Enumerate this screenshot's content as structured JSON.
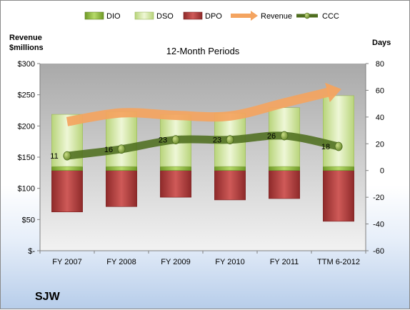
{
  "chart_data": {
    "type": "bar",
    "title": "12-Month Periods",
    "company": "SJW",
    "categories": [
      "FY 2007",
      "FY 2008",
      "FY 2009",
      "FY 2010",
      "FY 2011",
      "TTM 6-2012"
    ],
    "left_axis": {
      "label_line1": "Revenue",
      "label_line2": "$millions",
      "ylim": [
        0,
        300
      ],
      "ticks": [
        0,
        50,
        100,
        150,
        200,
        250,
        300
      ],
      "tick_labels": [
        "$-",
        "$50",
        "$100",
        "$150",
        "$200",
        "$250",
        "$300"
      ]
    },
    "right_axis": {
      "label": "Days",
      "ylim": [
        -60,
        80
      ],
      "ticks": [
        -60,
        -40,
        -20,
        0,
        20,
        40,
        60,
        80
      ],
      "tick_labels": [
        "-60",
        "-40",
        "-20",
        "0",
        "20",
        "40",
        "60",
        "80"
      ]
    },
    "series": [
      {
        "name": "DIO",
        "axis": "right",
        "kind": "stacked-bar",
        "values": [
          3,
          3,
          3,
          3,
          3,
          3
        ],
        "color": "#8db53c"
      },
      {
        "name": "DSO",
        "axis": "right",
        "kind": "stacked-bar",
        "values": [
          39,
          41,
          39,
          40,
          44,
          53
        ],
        "color": "#d4e8a4"
      },
      {
        "name": "DPO",
        "axis": "right",
        "kind": "stacked-bar",
        "values": [
          -31,
          -27,
          -20,
          -22,
          -21,
          -38
        ],
        "color": "#b5403f"
      },
      {
        "name": "Revenue",
        "axis": "left",
        "kind": "line",
        "values": [
          207,
          221,
          217,
          216,
          237,
          258
        ],
        "color": "#f0a060"
      },
      {
        "name": "CCC",
        "axis": "right",
        "kind": "line",
        "values": [
          11,
          16,
          23,
          23,
          26,
          18
        ],
        "data_labels": [
          "11",
          "16",
          "23",
          "23",
          "26",
          "18"
        ],
        "color": "#5a7a2a"
      }
    ],
    "legend": {
      "position": "top",
      "entries": [
        "DIO",
        "DSO",
        "DPO",
        "Revenue",
        "CCC"
      ]
    },
    "grid": false
  }
}
